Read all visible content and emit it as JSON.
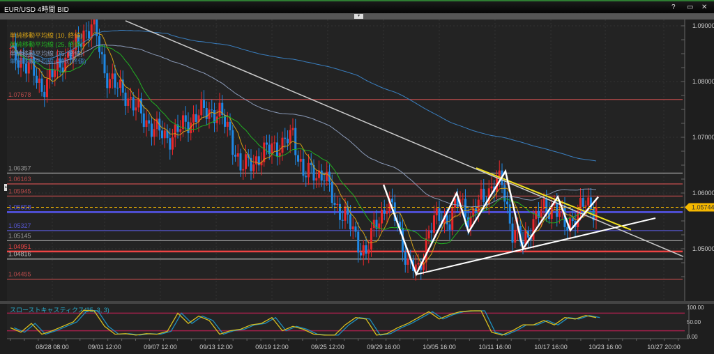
{
  "window": {
    "title": "EUR/USD 4時間 BID",
    "help": "?",
    "maximize": "▭",
    "close": "✕",
    "collapse_toggle": "▾",
    "side_toggle": "▸"
  },
  "legend": [
    {
      "label": "単純移動平均線 (10, 終値)",
      "color": "#d4a017"
    },
    {
      "label": "単純移動平均線 (25, 終値)",
      "color": "#22b022"
    },
    {
      "label": "単純移動平均線 (75, 終値)",
      "color": "#8a9ab8"
    },
    {
      "label": "単純移動平均線 (200, 終値)",
      "color": "#3a7fc0"
    }
  ],
  "chart_data": {
    "type": "candlestick",
    "symbol": "EUR/USD",
    "timeframe": "4時間",
    "side": "BID",
    "ylim": [
      1.0415,
      1.0915
    ],
    "y_ticks": [
      "1.09000",
      "1.08000",
      "1.07000",
      "1.06000",
      "1.05000"
    ],
    "x_ticks": [
      {
        "label": "08/28 08:00",
        "bar": 4
      },
      {
        "label": "09/01 12:00",
        "bar": 9
      },
      {
        "label": "09/07 12:00",
        "bar": 14.33
      },
      {
        "label": "09/13 12:00",
        "bar": 19.67
      },
      {
        "label": "09/19 12:00",
        "bar": 25
      },
      {
        "label": "09/25 12:00",
        "bar": 30.33
      },
      {
        "label": "09/29 16:00",
        "bar": 35.67
      },
      {
        "label": "10/05 16:00",
        "bar": 41
      },
      {
        "label": "10/11 16:00",
        "bar": 46.33
      },
      {
        "label": "10/17 16:00",
        "bar": 51.67
      },
      {
        "label": "10/23 16:00",
        "bar": 56.87
      },
      {
        "label": "10/27 20:00",
        "bar": 62.47
      }
    ],
    "closes": [
      1.085,
      1.084,
      1.082,
      1.079,
      1.081,
      1.084,
      1.085,
      1.089,
      1.09,
      1.082,
      1.079,
      1.078,
      1.075,
      1.073,
      1.071,
      1.07,
      1.071,
      1.073,
      1.074,
      1.075,
      1.074,
      1.071,
      1.064,
      1.066,
      1.066,
      1.069,
      1.068,
      1.071,
      1.063,
      1.064,
      1.063,
      1.058,
      1.056,
      1.052,
      1.049,
      1.055,
      1.058,
      1.055,
      1.047,
      1.046,
      1.053,
      1.056,
      1.055,
      1.059,
      1.055,
      1.059,
      1.061,
      1.062,
      1.053,
      1.051,
      1.055,
      1.057,
      1.058,
      1.054,
      1.056,
      1.058,
      1.05744
    ],
    "current_price": {
      "label": "1.05744",
      "value": 1.05744,
      "color": "#f5b800"
    },
    "levels": [
      {
        "label": "1.07678",
        "value": 1.07678,
        "color": "#b84a4a"
      },
      {
        "label": "1.06357",
        "value": 1.06357,
        "color": "#9a9a9a"
      },
      {
        "label": "1.06163",
        "value": 1.06163,
        "color": "#b84a4a"
      },
      {
        "label": "1.05945",
        "value": 1.05945,
        "color": "#b84a4a"
      },
      {
        "label": "1.05658",
        "value": 1.05658,
        "color": "#5555ee",
        "thick": true
      },
      {
        "label": "1.05327",
        "value": 1.05327,
        "color": "#5555cc"
      },
      {
        "label": "1.05145",
        "value": 1.05145,
        "color": "#9a9a9a"
      },
      {
        "label": "1.04951",
        "value": 1.04951,
        "color": "#ee4444",
        "thick": true
      },
      {
        "label": "1.04816",
        "value": 1.04816,
        "color": "#bbbbbb"
      },
      {
        "label": "1.04455",
        "value": 1.04455,
        "color": "#b84a4a"
      }
    ],
    "drawings": [
      {
        "color": "#cccccc",
        "width": 1.5,
        "points": [
          [
            11,
            1.0909
          ],
          [
            64.33,
            1.0486
          ]
        ]
      },
      {
        "color": "#ffffff",
        "width": 2,
        "points": [
          [
            38.8,
            1.0454
          ],
          [
            61.67,
            1.0555
          ]
        ]
      },
      {
        "color": "#f0e020",
        "width": 2,
        "points": [
          [
            44.53,
            1.0645
          ],
          [
            59.33,
            1.0534
          ]
        ]
      },
      {
        "color": "#ffffff",
        "width": 2.5,
        "points": [
          [
            35.67,
            1.0615
          ],
          [
            38.8,
            1.04544
          ],
          [
            42.67,
            1.06
          ],
          [
            43.8,
            1.053
          ],
          [
            47.33,
            1.0639
          ],
          [
            49,
            1.05
          ],
          [
            52.33,
            1.0593
          ],
          [
            53.53,
            1.0533
          ],
          [
            56.2,
            1.0593
          ]
        ]
      }
    ],
    "oscillator": {
      "label": "スローストキャスティクス(25, 3, 3)",
      "y_ticks": [
        "100.00",
        "50.00",
        "0.00"
      ],
      "bands": [
        80,
        20
      ],
      "k": [
        30,
        15,
        45,
        8,
        20,
        35,
        50,
        90,
        88,
        35,
        8,
        10,
        5,
        10,
        8,
        18,
        80,
        45,
        70,
        55,
        8,
        20,
        25,
        40,
        45,
        65,
        20,
        35,
        25,
        8,
        5,
        5,
        40,
        65,
        60,
        5,
        10,
        30,
        45,
        65,
        85,
        60,
        75,
        85,
        88,
        88,
        15,
        5,
        20,
        40,
        40,
        55,
        40,
        65,
        60,
        72,
        65
      ]
    }
  }
}
